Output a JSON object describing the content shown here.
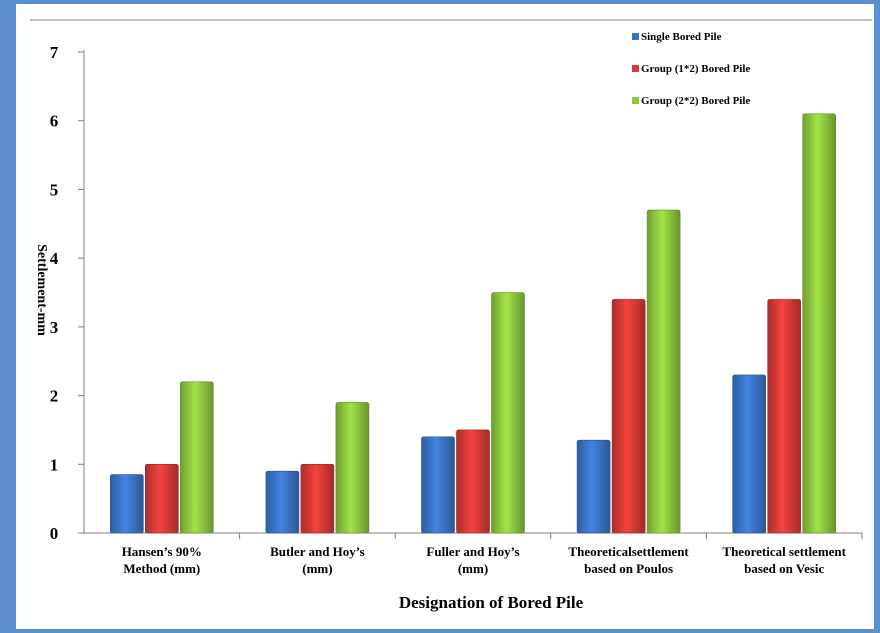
{
  "chart_data": {
    "type": "bar",
    "title": "",
    "xlabel": "Designation of Bored Pile",
    "ylabel": "Settlement-mm",
    "ylim": [
      0,
      7
    ],
    "yticks": [
      0,
      1,
      2,
      3,
      4,
      5,
      6,
      7
    ],
    "grid": false,
    "legend_position": "top-right",
    "categories": [
      [
        "Hansen’s 90%",
        "Method (mm)"
      ],
      [
        "Butler and Hoy’s",
        "(mm)"
      ],
      [
        "Fuller and Hoy’s",
        "(mm)"
      ],
      [
        "Theoreticalsettlement",
        "based on Poulos"
      ],
      [
        "Theoretical settlement",
        "based on Vesic"
      ]
    ],
    "series": [
      {
        "name": "Single Bored Pile",
        "color": "#3a74c7",
        "values": [
          0.85,
          0.9,
          1.4,
          1.35,
          2.3
        ]
      },
      {
        "name": "Group (1*2) Bored Pile",
        "color": "#d63a36",
        "values": [
          1.0,
          1.0,
          1.5,
          3.4,
          3.4
        ]
      },
      {
        "name": "Group (2*2) Bored Pile",
        "color": "#8cc63e",
        "values": [
          2.2,
          1.9,
          3.5,
          4.7,
          6.1
        ]
      }
    ]
  }
}
